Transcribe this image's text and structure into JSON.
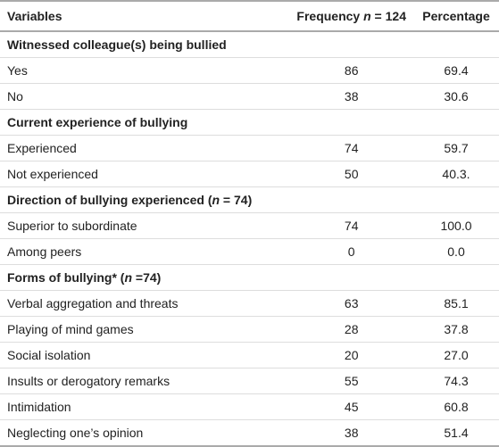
{
  "header": [
    "Variables",
    [
      "Frequency ",
      "n",
      " = 124"
    ],
    "Percentage"
  ],
  "sections": [
    {
      "title": "Witnessed colleague(s) being bullied",
      "rows": [
        [
          "Yes",
          86,
          "69.4"
        ],
        [
          "No",
          38,
          "30.6"
        ]
      ]
    },
    {
      "title": "Current experience of bullying",
      "rows": [
        [
          "Experienced",
          74,
          "59.7"
        ],
        [
          "Not experienced",
          50,
          "40.3."
        ]
      ]
    },
    {
      "title": [
        "Direction of bullying experienced (",
        "n",
        " = 74)"
      ],
      "rows": [
        [
          "Superior to subordinate",
          74,
          "100.0"
        ],
        [
          "Among peers",
          0,
          "0.0"
        ]
      ]
    },
    {
      "title": [
        "Forms of bullying* (",
        "n",
        " =74)"
      ],
      "rows": [
        [
          "Verbal aggregation and threats",
          63,
          "85.1"
        ],
        [
          "Playing of mind games",
          28,
          "37.8"
        ],
        [
          "Social isolation",
          20,
          "27.0"
        ],
        [
          "Insults or derogatory remarks",
          55,
          "74.3"
        ],
        [
          "Intimidation",
          45,
          "60.8"
        ],
        [
          "Neglecting one’s opinion",
          38,
          "51.4"
        ]
      ]
    }
  ]
}
